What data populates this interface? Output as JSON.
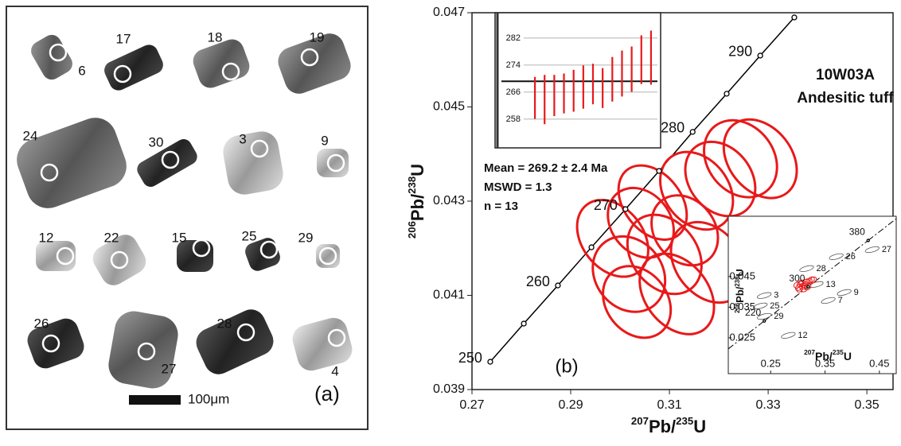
{
  "panel_a": {
    "grains": [
      "6",
      "17",
      "18",
      "19",
      "24",
      "30",
      "3",
      "9",
      "12",
      "22",
      "15",
      "25",
      "29",
      "26",
      "27",
      "28",
      "4"
    ],
    "scale_bar": "100μm",
    "panel_label": "(a)"
  },
  "chart_data": [
    {
      "type": "concordia",
      "xlabel": [
        "207",
        "Pb/",
        "235",
        "U"
      ],
      "ylabel": [
        "206",
        "Pb/",
        "238",
        "U"
      ],
      "xlim": [
        0.27,
        0.3553
      ],
      "ylim": [
        0.039,
        0.047
      ],
      "xticks": [
        0.27,
        0.29,
        0.31,
        0.33,
        0.35
      ],
      "yticks": [
        0.039,
        0.041,
        0.043,
        0.045,
        0.047
      ],
      "concordia": {
        "color": "#000000",
        "labels": [
          250,
          null,
          260,
          null,
          270,
          null,
          280,
          null,
          290,
          null
        ],
        "x": [
          0.2737,
          0.2805,
          0.2874,
          0.2942,
          0.3011,
          0.3079,
          0.3147,
          0.3216,
          0.3284,
          0.3353
        ],
        "y": [
          0.03959,
          0.0404,
          0.04121,
          0.04202,
          0.04283,
          0.04364,
          0.04447,
          0.04528,
          0.04609,
          0.0469
        ]
      },
      "ellipses": {
        "color": "#e8191a",
        "x": [
          0.2985,
          0.3018,
          0.3042,
          0.3066,
          0.309,
          0.3115,
          0.3131,
          0.3155,
          0.3179,
          0.3203,
          0.3244,
          0.3284,
          0.3034
        ],
        "x_err": [
          0.0062,
          0.0068,
          0.006,
          0.0058,
          0.0066,
          0.0064,
          0.0061,
          0.0065,
          0.0066,
          0.0063,
          0.0067,
          0.0064,
          0.0062
        ],
        "y": [
          0.04221,
          0.04145,
          0.04254,
          0.04297,
          0.04187,
          0.04103,
          0.04238,
          0.04322,
          0.0417,
          0.04347,
          0.0439,
          0.0439,
          0.04086
        ],
        "y_err": [
          0.0009,
          0.00085,
          0.0008,
          0.00088,
          0.00092,
          0.00095,
          0.0008,
          0.0009,
          0.00094,
          0.00086,
          0.00088,
          0.00092,
          0.00082
        ]
      },
      "sample": "10W03A",
      "rock": "Andesitic tuff",
      "panel_label": "(b)"
    },
    {
      "type": "errorbar",
      "ylim": [
        249.5,
        289.5
      ],
      "yticks": [
        258,
        266,
        274,
        282
      ],
      "color": "#e8191a",
      "values": [
        264.3,
        263.8,
        265.0,
        265.6,
        266.4,
        267.5,
        268.4,
        267.2,
        269.8,
        271.5,
        272.8,
        275.6,
        276.2
      ],
      "errors": [
        6.2,
        7.3,
        6.1,
        5.9,
        6.2,
        6.4,
        6.0,
        5.9,
        6.6,
        6.8,
        6.7,
        7.2,
        8.0
      ],
      "mean": 269.2,
      "stats": [
        "Mean = 269.2 ± 2.4 Ma",
        "MSWD = 1.3",
        "n = 13"
      ]
    },
    {
      "type": "concordia",
      "xlabel": [
        "207",
        "Pb/",
        "235",
        "U"
      ],
      "ylabel": [
        "206",
        "Pb/",
        "238",
        "U"
      ],
      "xlim": [
        0.172,
        0.481
      ],
      "ylim": [
        0.0133,
        0.0647
      ],
      "xticks": [
        0.25,
        0.35,
        0.45
      ],
      "yticks": [
        0.025,
        0.035,
        0.045
      ],
      "concordia": {
        "color": "#000000",
        "labels": [
          220,
          300,
          380
        ],
        "x": [
          0.2382,
          0.3191,
          0.4294
        ],
        "y": [
          0.0305,
          0.0417,
          0.0568
        ]
      },
      "grains": {
        "color": "#555555",
        "labels": [
          "27",
          "26",
          "28",
          "13",
          "9",
          "7",
          "3",
          "25",
          "29",
          "12"
        ],
        "x": [
          0.4368,
          0.3706,
          0.3162,
          0.3338,
          0.3853,
          0.3559,
          0.2382,
          0.2309,
          0.2382,
          0.2824
        ],
        "y": [
          0.0538,
          0.0515,
          0.0476,
          0.0424,
          0.0398,
          0.0372,
          0.0388,
          0.0354,
          0.032,
          0.0258
        ]
      }
    }
  ]
}
